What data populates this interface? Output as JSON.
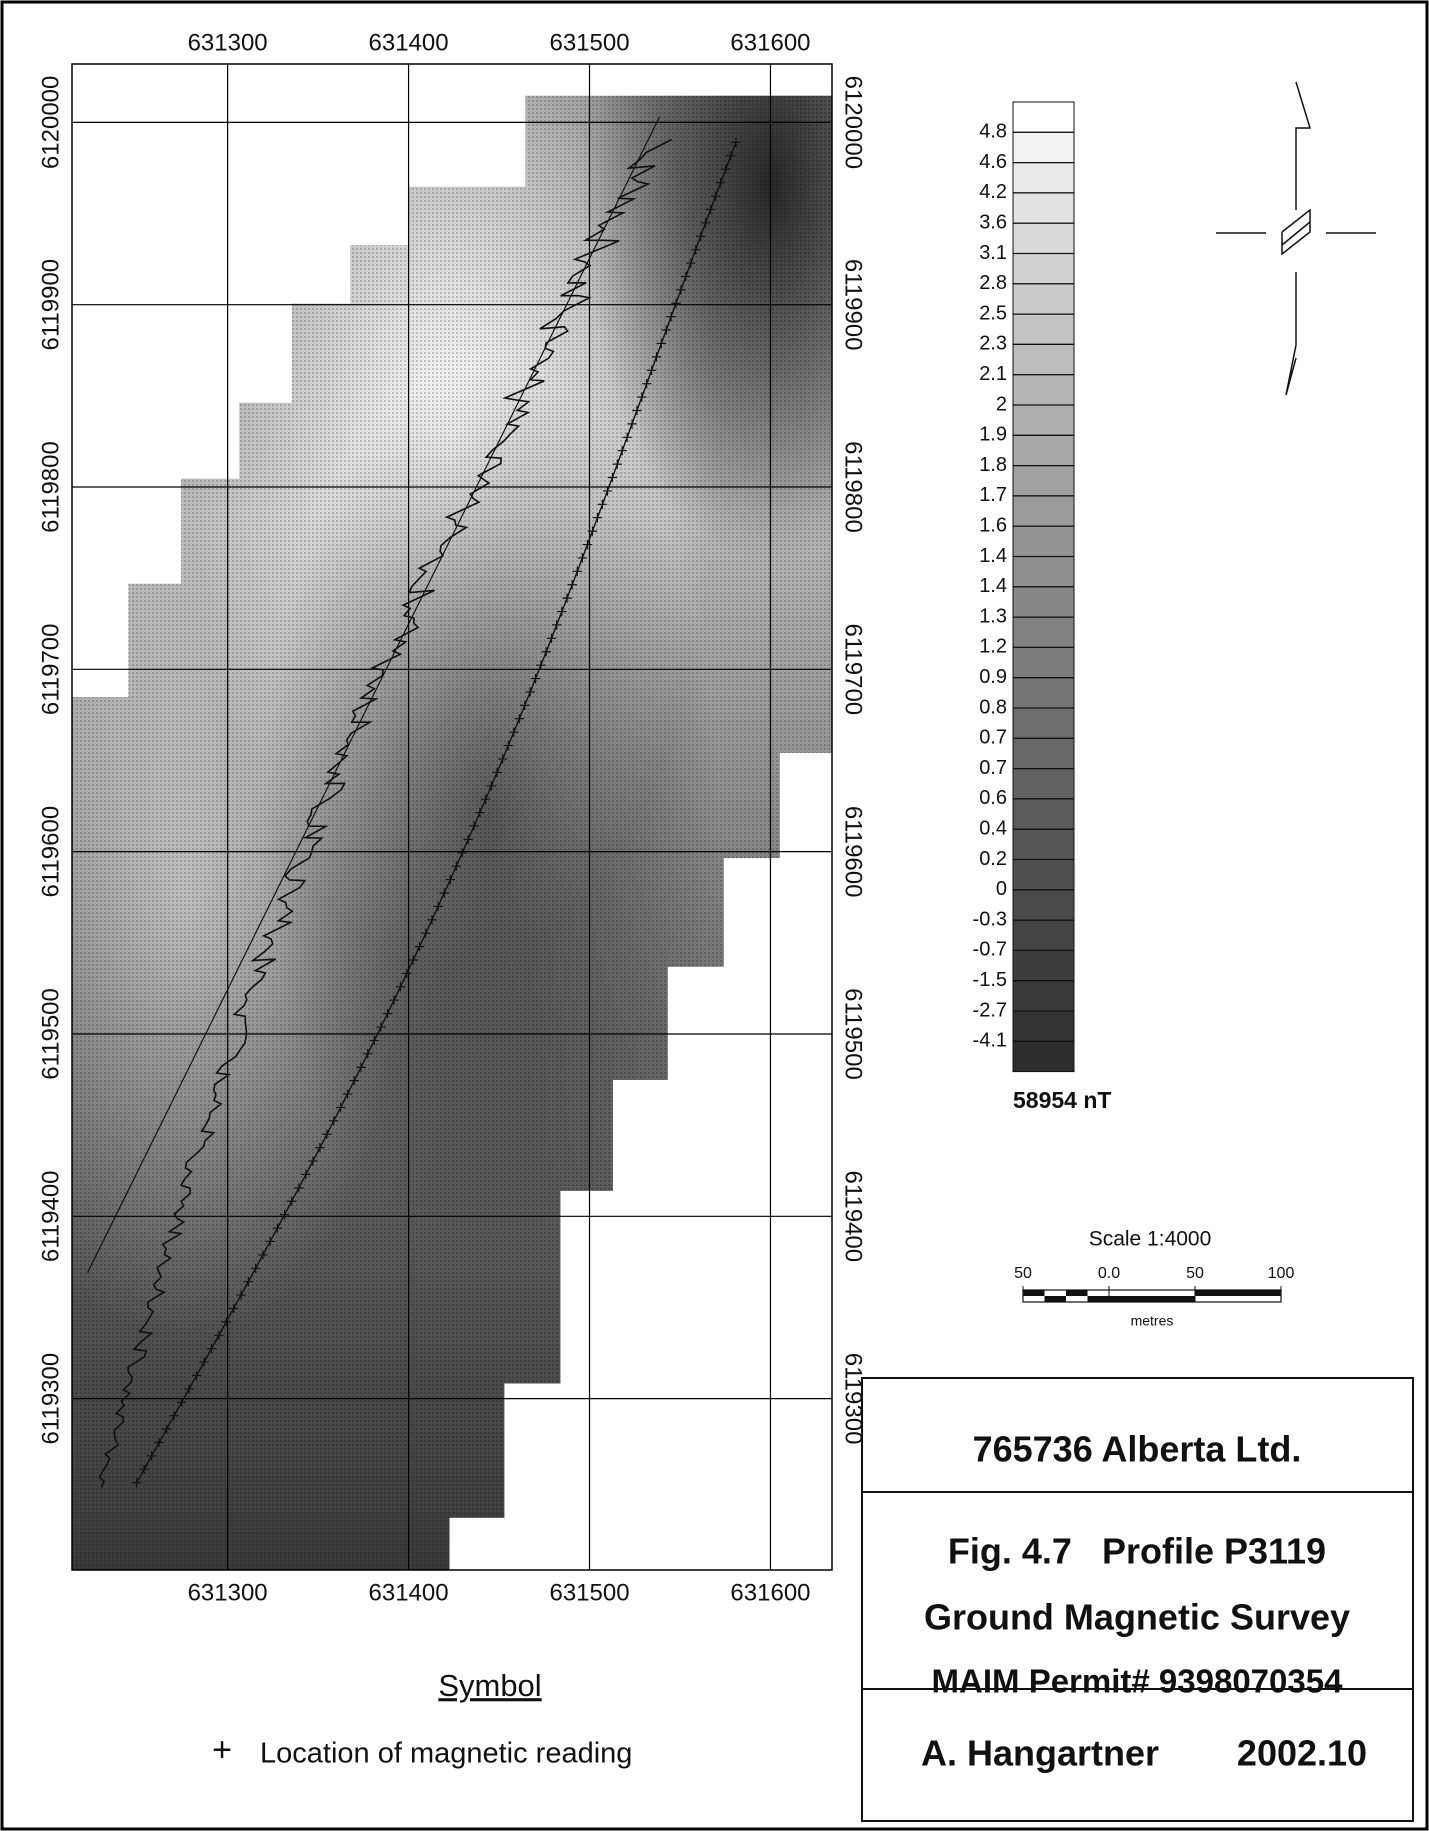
{
  "map": {
    "xlim": [
      631214,
      631634
    ],
    "ylim": [
      6119206,
      6120032
    ],
    "xticks": [
      631300,
      631400,
      631500,
      631600
    ],
    "yticks": [
      6120000,
      6119900,
      6119800,
      6119700,
      6119600,
      6119500,
      6119400,
      6119300
    ]
  },
  "legend": {
    "levels": [
      4.8,
      4.6,
      4.2,
      3.6,
      3.1,
      2.8,
      2.5,
      2.3,
      2.1,
      2.0,
      1.9,
      1.8,
      1.7,
      1.6,
      1.4,
      1.4,
      1.3,
      1.2,
      0.9,
      0.8,
      0.7,
      0.7,
      0.6,
      0.4,
      0.2,
      0.0,
      -0.3,
      -0.7,
      -1.5,
      -2.7,
      -4.1
    ],
    "base_label": "58954 nT"
  },
  "scale": {
    "title": "Scale 1:4000",
    "range": [
      -50,
      100
    ],
    "ticks": [
      {
        "value": -50,
        "label": "50"
      },
      {
        "value": 0,
        "label": "0.0"
      },
      50,
      100
    ],
    "unit": "metres"
  },
  "symbol": {
    "title": "Symbol",
    "marker": "+",
    "label": "Location of magnetic reading"
  },
  "title_block": {
    "company": "765736 Alberta Ltd.",
    "figure": "Fig. 4.7   Profile P3119",
    "survey": "Ground Magnetic Survey",
    "permit": "MAIM Permit# 9398070354",
    "author": "A. Hangartner",
    "date": "2002.10"
  }
}
